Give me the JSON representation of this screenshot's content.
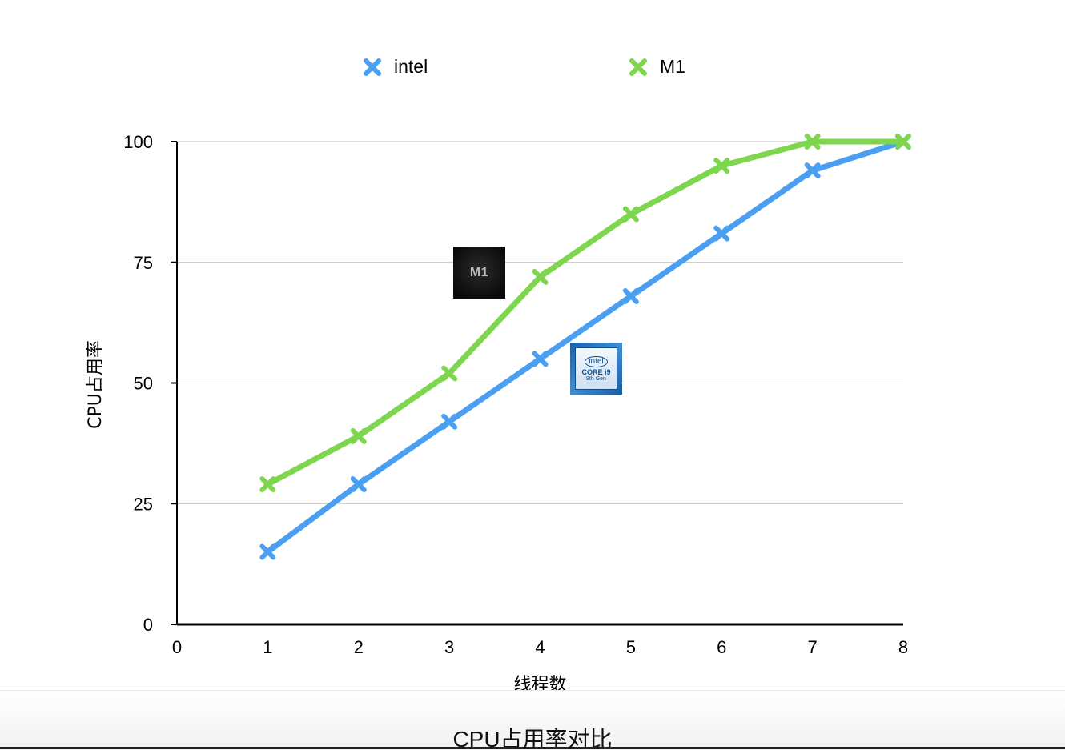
{
  "chart_data": {
    "type": "line",
    "title": "",
    "caption": "CPU占用率对比",
    "xlabel": "线程数",
    "ylabel": "CPU占用率",
    "x": [
      1,
      2,
      3,
      4,
      5,
      6,
      7,
      8
    ],
    "xlim": [
      0,
      8
    ],
    "ylim": [
      0,
      100
    ],
    "xticks": [
      "0",
      "1",
      "2",
      "3",
      "4",
      "5",
      "6",
      "7",
      "8"
    ],
    "yticks": [
      "0",
      "25",
      "50",
      "75",
      "100"
    ],
    "grid": "horizontal",
    "legend_position": "top",
    "series": [
      {
        "name": "intel",
        "color": "#4a9ff0",
        "values": [
          15,
          29,
          42,
          55,
          68,
          81,
          94,
          100
        ]
      },
      {
        "name": "M1",
        "color": "#7ed64f",
        "values": [
          29,
          39,
          52,
          72,
          85,
          95,
          100,
          100
        ]
      }
    ],
    "annotations": [
      {
        "kind": "badge",
        "text": "M1",
        "icon": "apple-m1-chip-icon"
      },
      {
        "kind": "badge",
        "lines": [
          "intel",
          "CORE i9",
          "9th Gen"
        ],
        "icon": "intel-core-i9-badge-icon"
      }
    ]
  }
}
